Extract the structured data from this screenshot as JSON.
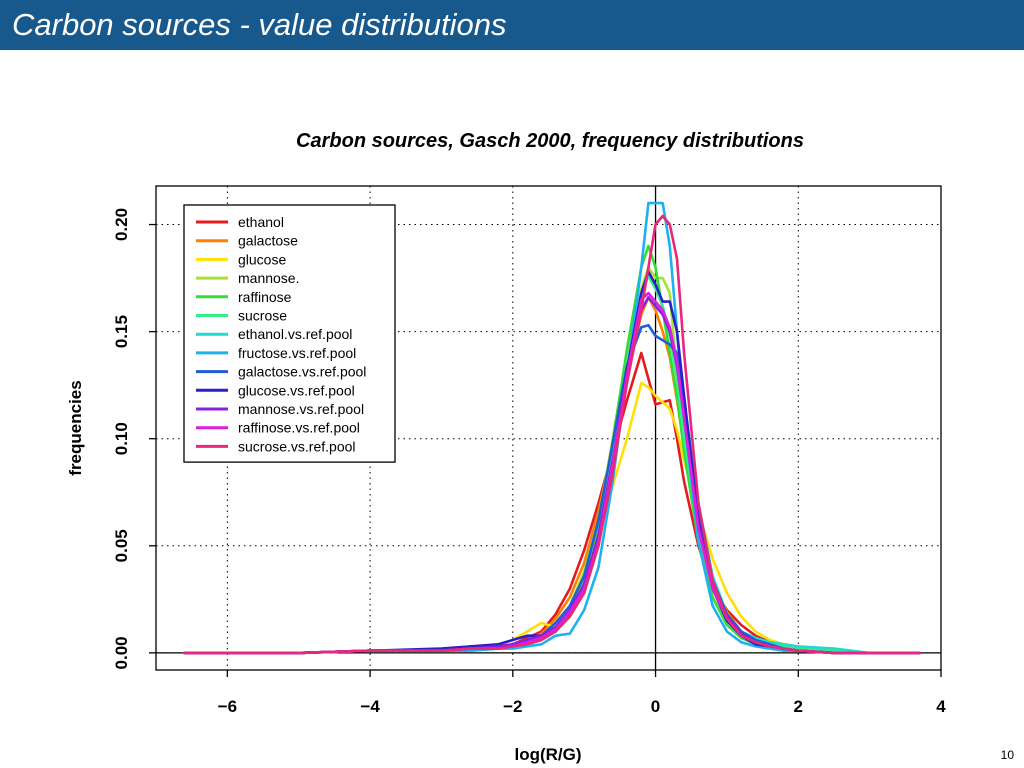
{
  "slide": {
    "title": "Carbon sources - value distributions",
    "page_number": "10",
    "header_color": "#17598c"
  },
  "chart_data": {
    "type": "line",
    "title": "Carbon sources, Gasch 2000, frequency distributions",
    "xlabel": "log(R/G)",
    "ylabel": "frequencies",
    "xlim": [
      -7.0,
      4.0
    ],
    "ylim": [
      -0.008,
      0.218
    ],
    "x_ticks": [
      -6,
      -4,
      -2,
      0,
      2,
      4
    ],
    "x_tick_labels": [
      "−6",
      "−4",
      "−2",
      "0",
      "2",
      "4"
    ],
    "y_ticks": [
      0.0,
      0.05,
      0.1,
      0.15,
      0.2
    ],
    "y_tick_labels": [
      "0.00",
      "0.05",
      "0.10",
      "0.15",
      "0.20"
    ],
    "grid": true,
    "grid_style": "dotted",
    "reference_lines": {
      "x": 0,
      "y": 0
    },
    "legend_position": "top-left",
    "x": [
      -6.6,
      -6.0,
      -5.0,
      -4.0,
      -3.0,
      -2.6,
      -2.2,
      -2.0,
      -1.8,
      -1.6,
      -1.4,
      -1.2,
      -1.0,
      -0.8,
      -0.6,
      -0.4,
      -0.2,
      -0.1,
      0.0,
      0.1,
      0.2,
      0.3,
      0.4,
      0.6,
      0.8,
      1.0,
      1.2,
      1.4,
      1.6,
      1.8,
      2.0,
      2.5,
      3.0,
      3.7
    ],
    "series": [
      {
        "name": "ethanol",
        "color": "#e41a1c",
        "values": [
          0.0,
          0.0,
          0.0,
          0.001,
          0.001,
          0.002,
          0.003,
          0.004,
          0.007,
          0.01,
          0.018,
          0.03,
          0.048,
          0.07,
          0.094,
          0.118,
          0.14,
          0.128,
          0.116,
          0.117,
          0.118,
          0.1,
          0.08,
          0.05,
          0.03,
          0.02,
          0.013,
          0.008,
          0.005,
          0.003,
          0.002,
          0.001,
          0.0,
          0.0
        ]
      },
      {
        "name": "galactose",
        "color": "#ff7f00",
        "values": [
          0.0,
          0.0,
          0.0,
          0.001,
          0.001,
          0.002,
          0.003,
          0.004,
          0.006,
          0.009,
          0.016,
          0.026,
          0.042,
          0.066,
          0.096,
          0.128,
          0.158,
          0.166,
          0.16,
          0.15,
          0.138,
          0.118,
          0.096,
          0.06,
          0.034,
          0.019,
          0.01,
          0.006,
          0.003,
          0.002,
          0.001,
          0.0,
          0.0,
          0.0
        ]
      },
      {
        "name": "glucose",
        "color": "#ffe000",
        "values": [
          0.0,
          0.0,
          0.0,
          0.001,
          0.001,
          0.002,
          0.004,
          0.006,
          0.01,
          0.014,
          0.012,
          0.022,
          0.036,
          0.056,
          0.078,
          0.1,
          0.126,
          0.124,
          0.12,
          0.117,
          0.114,
          0.104,
          0.09,
          0.066,
          0.044,
          0.028,
          0.017,
          0.01,
          0.006,
          0.004,
          0.002,
          0.001,
          0.0,
          0.0
        ]
      },
      {
        "name": "mannose.",
        "color": "#a6e22e",
        "values": [
          0.0,
          0.0,
          0.0,
          0.001,
          0.001,
          0.002,
          0.003,
          0.004,
          0.005,
          0.008,
          0.013,
          0.022,
          0.038,
          0.062,
          0.1,
          0.14,
          0.17,
          0.18,
          0.175,
          0.175,
          0.168,
          0.13,
          0.1,
          0.056,
          0.03,
          0.015,
          0.008,
          0.005,
          0.003,
          0.002,
          0.001,
          0.0,
          0.0,
          0.0
        ]
      },
      {
        "name": "raffinose",
        "color": "#33dd33",
        "values": [
          0.0,
          0.0,
          0.0,
          0.001,
          0.001,
          0.002,
          0.002,
          0.003,
          0.004,
          0.007,
          0.012,
          0.02,
          0.034,
          0.058,
          0.098,
          0.142,
          0.18,
          0.19,
          0.18,
          0.16,
          0.14,
          0.12,
          0.094,
          0.052,
          0.026,
          0.013,
          0.007,
          0.004,
          0.003,
          0.002,
          0.001,
          0.0,
          0.0,
          0.0
        ]
      },
      {
        "name": "sucrose",
        "color": "#33ee88",
        "values": [
          0.0,
          0.0,
          0.0,
          0.001,
          0.001,
          0.002,
          0.002,
          0.003,
          0.004,
          0.006,
          0.011,
          0.019,
          0.032,
          0.055,
          0.092,
          0.135,
          0.168,
          0.176,
          0.17,
          0.162,
          0.148,
          0.128,
          0.1,
          0.058,
          0.03,
          0.016,
          0.009,
          0.006,
          0.004,
          0.003,
          0.002,
          0.001,
          0.0,
          0.0
        ]
      },
      {
        "name": "ethanol.vs.ref.pool",
        "color": "#22d8d0",
        "values": [
          0.0,
          0.0,
          0.0,
          0.001,
          0.001,
          0.001,
          0.002,
          0.003,
          0.004,
          0.006,
          0.01,
          0.018,
          0.03,
          0.052,
          0.086,
          0.128,
          0.16,
          0.166,
          0.162,
          0.158,
          0.15,
          0.138,
          0.118,
          0.07,
          0.036,
          0.018,
          0.01,
          0.007,
          0.005,
          0.004,
          0.003,
          0.002,
          0.0,
          0.0
        ]
      },
      {
        "name": "fructose.vs.ref.pool",
        "color": "#1eb0f0",
        "values": [
          0.0,
          0.0,
          0.0,
          0.001,
          0.001,
          0.001,
          0.002,
          0.002,
          0.003,
          0.004,
          0.008,
          0.009,
          0.02,
          0.04,
          0.08,
          0.13,
          0.18,
          0.21,
          0.21,
          0.21,
          0.19,
          0.15,
          0.11,
          0.052,
          0.022,
          0.01,
          0.005,
          0.003,
          0.002,
          0.001,
          0.001,
          0.0,
          0.0,
          0.0
        ]
      },
      {
        "name": "galactose.vs.ref.pool",
        "color": "#1f5fd6",
        "values": [
          0.0,
          0.0,
          0.0,
          0.001,
          0.001,
          0.002,
          0.003,
          0.004,
          0.006,
          0.008,
          0.014,
          0.022,
          0.036,
          0.062,
          0.098,
          0.134,
          0.152,
          0.153,
          0.148,
          0.146,
          0.144,
          0.14,
          0.116,
          0.066,
          0.034,
          0.018,
          0.01,
          0.006,
          0.004,
          0.002,
          0.001,
          0.0,
          0.0,
          0.0
        ]
      },
      {
        "name": "glucose.vs.ref.pool",
        "color": "#2a1fc8",
        "values": [
          0.0,
          0.0,
          0.0,
          0.001,
          0.002,
          0.003,
          0.004,
          0.006,
          0.008,
          0.008,
          0.01,
          0.018,
          0.028,
          0.052,
          0.088,
          0.132,
          0.168,
          0.178,
          0.172,
          0.164,
          0.164,
          0.15,
          0.12,
          0.062,
          0.03,
          0.015,
          0.008,
          0.004,
          0.003,
          0.002,
          0.001,
          0.0,
          0.0,
          0.0
        ]
      },
      {
        "name": "mannose.vs.ref.pool",
        "color": "#8a1fe0",
        "values": [
          0.0,
          0.0,
          0.0,
          0.001,
          0.001,
          0.002,
          0.003,
          0.004,
          0.006,
          0.008,
          0.012,
          0.02,
          0.032,
          0.055,
          0.09,
          0.128,
          0.16,
          0.166,
          0.162,
          0.158,
          0.15,
          0.134,
          0.11,
          0.06,
          0.032,
          0.017,
          0.009,
          0.005,
          0.003,
          0.002,
          0.001,
          0.0,
          0.0,
          0.0
        ]
      },
      {
        "name": "raffinose.vs.ref.pool",
        "color": "#dd1fe0",
        "values": [
          0.0,
          0.0,
          0.0,
          0.001,
          0.001,
          0.002,
          0.002,
          0.003,
          0.005,
          0.007,
          0.011,
          0.019,
          0.03,
          0.052,
          0.088,
          0.13,
          0.165,
          0.168,
          0.164,
          0.16,
          0.152,
          0.136,
          0.11,
          0.058,
          0.03,
          0.016,
          0.008,
          0.005,
          0.003,
          0.002,
          0.001,
          0.0,
          0.0,
          0.0
        ]
      },
      {
        "name": "sucrose.vs.ref.pool",
        "color": "#e8287a",
        "values": [
          0.0,
          0.0,
          0.0,
          0.001,
          0.001,
          0.002,
          0.002,
          0.003,
          0.004,
          0.006,
          0.01,
          0.017,
          0.028,
          0.05,
          0.084,
          0.126,
          0.16,
          0.18,
          0.2,
          0.204,
          0.2,
          0.184,
          0.14,
          0.07,
          0.034,
          0.016,
          0.008,
          0.005,
          0.003,
          0.002,
          0.001,
          0.0,
          0.0,
          0.0
        ]
      }
    ]
  }
}
